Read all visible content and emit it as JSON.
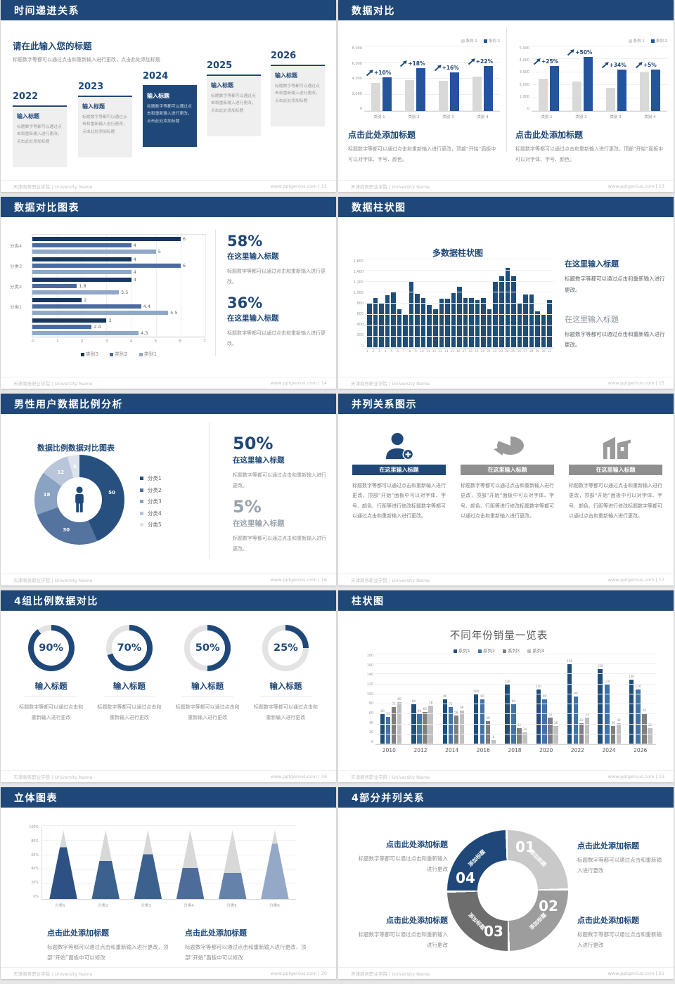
{
  "page": {
    "background": "#e6e6e6",
    "accent": "#1f4878"
  },
  "footer": {
    "left": "天津商务职业学院 | University Name",
    "site": "www.pptgenius.com",
    "separator": "|"
  },
  "slides": [
    {
      "title": "时间递进关系",
      "page": "12",
      "heading": "请在此输入您的标题",
      "subtext": "标题数字等都可以通过点击和重新输入进行更改，点击此处添加标题",
      "box_body": "标题数字等都可以通过点击和重新输入进行更改，点击此处添加标题",
      "timeline": [
        {
          "year": "2022",
          "box_title": "输入标题",
          "highlight": false
        },
        {
          "year": "2023",
          "box_title": "输入标题",
          "highlight": false
        },
        {
          "year": "2024",
          "box_title": "输入标题",
          "highlight": true
        },
        {
          "year": "2025",
          "box_title": "输入标题",
          "highlight": false
        },
        {
          "year": "2026",
          "box_title": "输入标题",
          "highlight": false
        }
      ]
    },
    {
      "title": "数据对比",
      "page": "13",
      "charts": [
        {
          "type": "bar",
          "legend": [
            "系列 1",
            "系列 2"
          ],
          "legend_colors": [
            "#d9d9d9",
            "#24549c"
          ],
          "categories": [
            "类别 1",
            "类别 2",
            "类别 3",
            "类别 4"
          ],
          "ymax": 8000,
          "yticks": [
            "8,000",
            "6,000",
            "4,000",
            "2,000",
            "0"
          ],
          "series1": [
            3500,
            3800,
            3700,
            4300
          ],
          "series2": [
            4200,
            5300,
            4800,
            5600
          ],
          "growth": [
            "+10%",
            "+18%",
            "+16%",
            "+22%"
          ],
          "heading": "点击此处添加标题",
          "body": "标题数字等都可以通过点击和重新输入进行更改，顶部“开始”面板中可以对字体、字号、颜色。"
        },
        {
          "type": "bar",
          "legend": [
            "系列 1",
            "系列 2"
          ],
          "legend_colors": [
            "#d9d9d9",
            "#24549c"
          ],
          "categories": [
            "类别 1",
            "类别 2",
            "类别 3",
            "类别 4"
          ],
          "ymax": 5000,
          "yticks": [
            "5,000",
            "4,000",
            "3,000",
            "2,000",
            "1,000",
            "0"
          ],
          "series1": [
            2500,
            2300,
            1800,
            3000
          ],
          "series2": [
            3500,
            4200,
            3200,
            3200
          ],
          "growth": [
            "+25%",
            "+50%",
            "+34%",
            "+5%"
          ],
          "heading": "点击此处添加标题",
          "body": "标题数字等都可以通过点击和重新输入进行更改，顶部“开始”面板中可以对字体、字号、颜色。"
        }
      ]
    },
    {
      "title": "数据对比图表",
      "page": "14",
      "chart": {
        "type": "bar-horizontal",
        "groups": [
          "分类4",
          "分类3",
          "分类2",
          "分类1",
          ""
        ],
        "series": [
          "类别3",
          "类别2",
          "类别1"
        ],
        "colors": [
          "#17375e",
          "#4a6b9f",
          "#8fa8c8"
        ],
        "values": [
          [
            6,
            4,
            5
          ],
          [
            4,
            6,
            4
          ],
          [
            4,
            1.8,
            3.5
          ],
          [
            2,
            4.4,
            5.5
          ],
          [
            3,
            2.4,
            4.3
          ]
        ],
        "xticks": [
          "0",
          "1",
          "2",
          "3",
          "4",
          "5",
          "6",
          "7"
        ],
        "xmax": 7
      },
      "stats": [
        {
          "value": "58%",
          "heading": "在这里输入标题",
          "body": "标题数字等都可以通过点击和重新输入进行更改。",
          "muted": false
        },
        {
          "value": "36%",
          "heading": "在这里输入标题",
          "body": "标题数字等都可以通过点击和重新输入进行更改。",
          "muted": false
        }
      ]
    },
    {
      "title": "数据柱状图",
      "page": "15",
      "chart": {
        "type": "bar",
        "title": "多数据柱状图",
        "color": "#1f4e79",
        "ymax": 1600,
        "yticks": [
          "1,600",
          "1,400",
          "1,200",
          "1,000",
          "800",
          "600",
          "400",
          "200",
          "0"
        ],
        "values": [
          800,
          900,
          800,
          950,
          1010,
          700,
          600,
          1200,
          980,
          900,
          780,
          700,
          890,
          890,
          990,
          1100,
          900,
          900,
          870,
          900,
          700,
          1200,
          1300,
          1450,
          1300,
          800,
          960,
          970,
          660,
          600,
          870
        ]
      },
      "stats": [
        {
          "heading": "在这里输入标题",
          "body": "标题数字等都可以通过点击和重新输入进行更改。",
          "muted": false
        },
        {
          "heading": "在这里输入标题",
          "body": "标题数字等都可以通过点击和重新输入进行更改。",
          "muted": true
        }
      ]
    },
    {
      "title": "男性用户数据比例分析",
      "page": "16",
      "chart": {
        "type": "pie",
        "title": "数据比例数据对比图表",
        "values": [
          50,
          30,
          18,
          12,
          5
        ],
        "colors": [
          "#27507e",
          "#54749f",
          "#8ba3c2",
          "#b9c6d9",
          "#dde3ec"
        ],
        "legend": [
          "分类1",
          "分类2",
          "分类3",
          "分类4",
          "分类5"
        ],
        "center_icon": "male-figure-icon"
      },
      "stats": [
        {
          "value": "50%",
          "heading": "在这里输入标题",
          "body": "标题数字等都可以通过点击和重新输入进行更改。",
          "muted": false
        },
        {
          "value": "5%",
          "heading": "在这里输入标题",
          "body": "标题数字等都可以通过点击和重新输入进行更改。",
          "muted": true
        }
      ]
    },
    {
      "title": "并列关系图示",
      "page": "17",
      "columns": [
        {
          "icon": "person-add-icon",
          "heading": "在这里输入标题",
          "accent": true,
          "body": "标题数字等都可以通过点击和重新输入进行更改，顶部“开始”面板中可以对字体、字号、颜色、行距等进行修改标题数字等都可以通过点击和重新输入进行更改。"
        },
        {
          "icon": "pie-3d-icon",
          "heading": "在这里输入标题",
          "accent": false,
          "body": "标题数字等都可以通过点击和重新输入进行更改，顶部“开始”面板中可以对字体、字号、颜色、行距等进行修改标题数字等都可以通过点击和重新输入进行更改。"
        },
        {
          "icon": "building-icon",
          "heading": "在这里输入标题",
          "accent": false,
          "body": "标题数字等都可以通过点击和重新输入进行更改，顶部“开始”面板中可以对字体、字号、颜色、行距等进行修改标题数字等都可以通过点击和重新输入进行更改。"
        }
      ]
    },
    {
      "title": "4组比例数据对比",
      "page": "18",
      "gauges": [
        {
          "percent": 90,
          "label": "90%",
          "heading": "输入标题",
          "body": "标题数字等都可以通过点击和重新输入进行更改"
        },
        {
          "percent": 70,
          "label": "70%",
          "heading": "输入标题",
          "body": "标题数字等都可以通过点击和重新输入进行更改"
        },
        {
          "percent": 50,
          "label": "50%",
          "heading": "输入标题",
          "body": "标题数字等都可以通过点击和重新输入进行更改"
        },
        {
          "percent": 25,
          "label": "25%",
          "heading": "输入标题",
          "body": "标题数字等都可以通过点击和重新输入进行更改"
        }
      ]
    },
    {
      "title": "柱状图",
      "page": "19",
      "chart": {
        "type": "bar",
        "title": "不同年份销量一览表",
        "legend": [
          "系列1",
          "系列2",
          "系列3",
          "系列4"
        ],
        "colors": [
          "#1f4e79",
          "#4273a8",
          "#7f7f7f",
          "#bfbfbf"
        ],
        "categories": [
          "2010",
          "2012",
          "2014",
          "2016",
          "2018",
          "2020",
          "2022",
          "2024",
          "2026"
        ],
        "series": [
          {
            "name": "系列1",
            "values": [
              60,
              80,
              90,
              100,
              120,
              110,
              160,
              150,
              130
            ]
          },
          {
            "name": "系列2",
            "values": [
              55,
              60,
              75,
              90,
              80,
              90,
              96,
              120,
              110
            ]
          },
          {
            "name": "系列3",
            "values": [
              75,
              65,
              58,
              46,
              32,
              54,
              42,
              36,
              62
            ]
          },
          {
            "name": "系列4",
            "values": [
              85,
              78,
              68,
              8,
              24,
              36,
              53,
              42,
              32
            ]
          }
        ],
        "ymax": 180,
        "yticks": [
          "180",
          "160",
          "140",
          "120",
          "100",
          "80",
          "60",
          "40",
          "20",
          "0"
        ]
      }
    },
    {
      "title": "立体图表",
      "page": "20",
      "chart": {
        "type": "bar",
        "subtype": "cone",
        "categories": [
          "分类1",
          "分类2",
          "分类3",
          "分类4",
          "分类5",
          "分类6"
        ],
        "fill_percent": [
          75,
          55,
          65,
          45,
          38,
          80
        ],
        "colors": [
          "#2d5183",
          "#3b618f",
          "#3b618f",
          "#4d6c99",
          "#6482aa",
          "#93a9c7"
        ],
        "gray": "#d8d8d8",
        "yticks": [
          "100%",
          "80%",
          "60%",
          "40%",
          "20%",
          "0%"
        ]
      },
      "notes": [
        {
          "heading": "点击此处添加标题",
          "body": "标题数字等都可以通过点击和重新输入进行更改，顶部“开始”面板中可以修改"
        },
        {
          "heading": "点击此处添加标题",
          "body": "标题数字等都可以通过点击和重新输入进行更改，顶部“开始”面板中可以修改"
        }
      ]
    },
    {
      "title": "4部分并列关系",
      "page": "21",
      "ring": {
        "segment_label": "添加标题",
        "segments": [
          {
            "num": "01",
            "color": "#c9c9c9"
          },
          {
            "num": "02",
            "color": "#9d9d9d"
          },
          {
            "num": "03",
            "color": "#6d6d6d"
          },
          {
            "num": "04",
            "color": "#1f4878"
          }
        ]
      },
      "notes": [
        {
          "heading": "点击此处添加标题",
          "body": "标题数字等都可以通过点击和重新输入进行更改"
        },
        {
          "heading": "点击此处添加标题",
          "body": "标题数字等都可以通过点击和重新输入进行更改"
        },
        {
          "heading": "点击此处添加标题",
          "body": "标题数字等都可以通过点击和重新输入进行更改"
        },
        {
          "heading": "点击此处添加标题",
          "body": "标题数字等都可以通过点击和重新输入进行更改"
        }
      ]
    }
  ]
}
